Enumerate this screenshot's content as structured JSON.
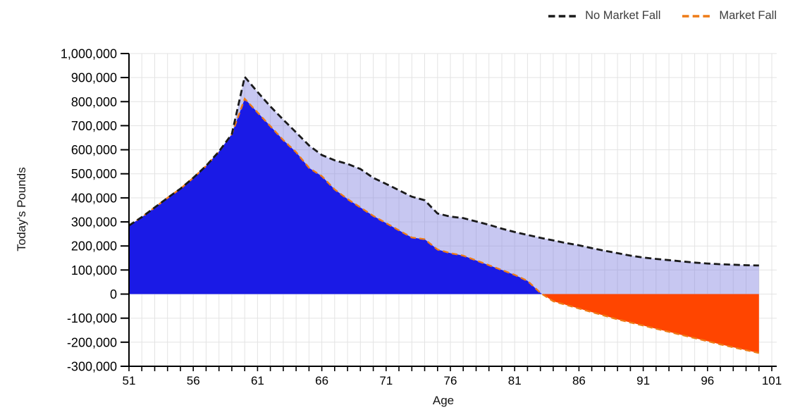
{
  "page": {
    "background": "#ffffff"
  },
  "legend": {
    "position": "top-right",
    "items": [
      {
        "label": "No Market Fall",
        "color": "#1a1a1a",
        "style": "dashed"
      },
      {
        "label": "Market Fall",
        "color": "#ee7b17",
        "style": "dashed"
      }
    ]
  },
  "chart_data": {
    "type": "area",
    "title": "",
    "xlabel": "Age",
    "ylabel": "Today's Pounds",
    "grid": true,
    "grid_color": "#e3e3e3",
    "legend_position": "top-right",
    "xlim": [
      51,
      101
    ],
    "ylim": [
      -300000,
      1000000
    ],
    "x_minor_tick_step": 1,
    "x_ticks_labeled": [
      51,
      56,
      61,
      66,
      71,
      76,
      81,
      86,
      91,
      96,
      101
    ],
    "y_ticks": {
      "values": [
        -300000,
        -200000,
        -100000,
        0,
        100000,
        200000,
        300000,
        400000,
        500000,
        600000,
        700000,
        800000,
        900000,
        1000000
      ],
      "labels": [
        "-300,000",
        "-200,000",
        "-100,000",
        "0",
        "100,000",
        "200,000",
        "300,000",
        "400,000",
        "500,000",
        "600,000",
        "700,000",
        "800,000",
        "900,000",
        "1,000,000"
      ]
    },
    "x": [
      51,
      52,
      53,
      54,
      55,
      56,
      57,
      58,
      59,
      60,
      61,
      62,
      63,
      64,
      65,
      66,
      67,
      68,
      69,
      70,
      71,
      72,
      73,
      74,
      75,
      76,
      77,
      78,
      79,
      80,
      81,
      82,
      83,
      84,
      85,
      86,
      87,
      88,
      89,
      90,
      91,
      92,
      93,
      94,
      95,
      96,
      97,
      98,
      99,
      100
    ],
    "series": [
      {
        "name": "No Market Fall",
        "line_color": "#1a1a1a",
        "line_style": "dashed",
        "fill": "rgba(130,130,224,0.45)",
        "values": [
          285000,
          320000,
          360000,
          400000,
          438000,
          483000,
          533000,
          593000,
          665000,
          903000,
          840000,
          780000,
          725000,
          672000,
          618000,
          578000,
          556000,
          541000,
          520000,
          483000,
          458000,
          432000,
          405000,
          390000,
          335000,
          322000,
          316000,
          302000,
          288000,
          272000,
          258000,
          246000,
          234000,
          223000,
          212000,
          203000,
          191000,
          180000,
          170000,
          160000,
          152000,
          146000,
          141000,
          136000,
          131000,
          127000,
          124000,
          122000,
          120000,
          119000
        ]
      },
      {
        "name": "Market Fall",
        "line_color": "#ee7b17",
        "line_style": "dashed",
        "fill_positive": "#1a1ae6",
        "fill_negative": "#ff4500",
        "values": [
          285000,
          320000,
          360000,
          400000,
          438000,
          483000,
          533000,
          593000,
          665000,
          812000,
          755000,
          698000,
          640000,
          590000,
          525000,
          490000,
          435000,
          395000,
          360000,
          325000,
          295000,
          265000,
          235000,
          228000,
          185000,
          170000,
          160000,
          140000,
          120000,
          100000,
          80000,
          55000,
          5000,
          -30000,
          -45000,
          -60000,
          -75000,
          -90000,
          -105000,
          -118000,
          -131000,
          -144000,
          -157000,
          -170000,
          -183000,
          -196000,
          -209000,
          -221000,
          -233000,
          -245000
        ]
      }
    ]
  }
}
